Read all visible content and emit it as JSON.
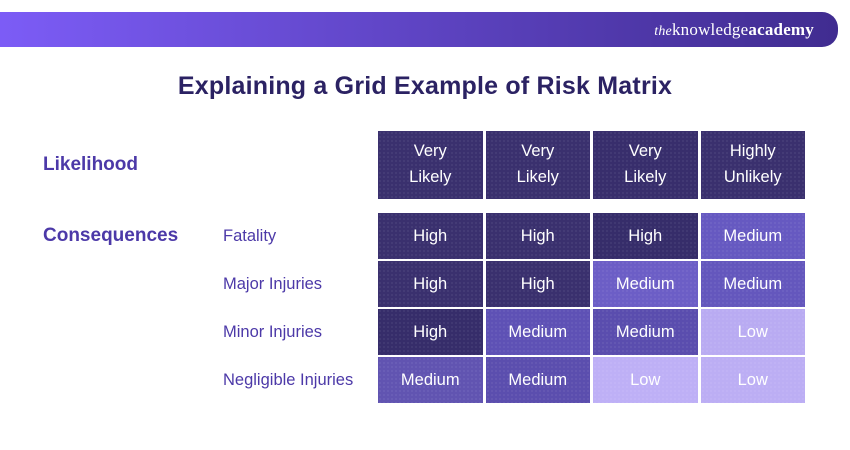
{
  "brand_bar": {
    "logo_the": "the",
    "logo_knowledge": "knowledge",
    "logo_academy": "academy",
    "gradient_left": "#7c5cf6",
    "gradient_right": "#402c90"
  },
  "title": {
    "text": "Explaining a Grid Example of Risk Matrix",
    "color": "#2b2263"
  },
  "axis_labels": {
    "likelihood": "Likelihood",
    "consequences": "Consequences"
  },
  "risk_matrix": {
    "text_color": "#ffffff",
    "level_colors": {
      "high": "#3a306e",
      "medium": "#6457bd",
      "low": "#bcaef4"
    },
    "column_headers": [
      {
        "text": "Very Likely",
        "color": "#3a306e"
      },
      {
        "text": "Very Likely",
        "color": "#3a306e"
      },
      {
        "text": "Very Likely",
        "color": "#382e6c"
      },
      {
        "text": "Highly Unlikely",
        "color": "#3a306e"
      }
    ],
    "rows": [
      {
        "label": "Fatality",
        "cells": [
          {
            "text": "High",
            "level": "high",
            "color": "#3a306e"
          },
          {
            "text": "High",
            "level": "high",
            "color": "#3a306e"
          },
          {
            "text": "High",
            "level": "high",
            "color": "#362d6a"
          },
          {
            "text": "Medium",
            "level": "medium",
            "color": "#6659c1"
          }
        ]
      },
      {
        "label": "Major Injuries",
        "cells": [
          {
            "text": "High",
            "level": "high",
            "color": "#3a306e"
          },
          {
            "text": "High",
            "level": "high",
            "color": "#3a306e"
          },
          {
            "text": "Medium",
            "level": "medium",
            "color": "#6c5ec6"
          },
          {
            "text": "Medium",
            "level": "medium",
            "color": "#6457bd"
          }
        ]
      },
      {
        "label": "Minor Injuries",
        "cells": [
          {
            "text": "High",
            "level": "high",
            "color": "#362d6a"
          },
          {
            "text": "Medium",
            "level": "medium",
            "color": "#5e51b5"
          },
          {
            "text": "Medium",
            "level": "medium",
            "color": "#5a4dae"
          },
          {
            "text": "Low",
            "level": "low",
            "color": "#b9abf2"
          }
        ]
      },
      {
        "label": "Negligible Injuries",
        "cells": [
          {
            "text": "Medium",
            "level": "medium",
            "color": "#6154b1"
          },
          {
            "text": "Medium",
            "level": "medium",
            "color": "#5b4eae"
          },
          {
            "text": "Low",
            "level": "low",
            "color": "#beb0f6"
          },
          {
            "text": "Low",
            "level": "low",
            "color": "#bcaef4"
          }
        ]
      }
    ]
  }
}
